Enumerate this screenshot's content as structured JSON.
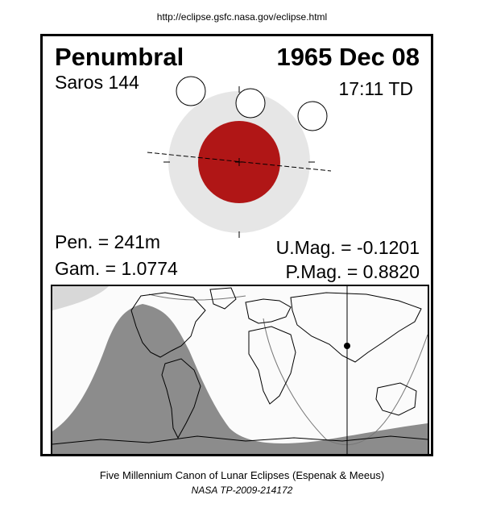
{
  "source_url": "http://eclipse.gsfc.nasa.gov/eclipse.html",
  "eclipse": {
    "type": "Penumbral",
    "date": "1965 Dec 08",
    "saros": "Saros 144",
    "time": "17:11 TD",
    "pen_duration": "Pen. = 241m",
    "gamma": "Gam. = 1.0774",
    "umbral_magnitude": "U.Mag. = -0.1201",
    "penumbral_magnitude": "P.Mag. = 0.8820"
  },
  "colors": {
    "umbra": "#b01616",
    "penumbra": "#e6e6e6",
    "night_shading": "#8c8c8c",
    "map_day": "#fbfbfb"
  },
  "footer": {
    "line1": "Five Millennium Canon of Lunar Eclipses (Espenak & Meeus)",
    "line2": "NASA TP-2009-214172"
  }
}
